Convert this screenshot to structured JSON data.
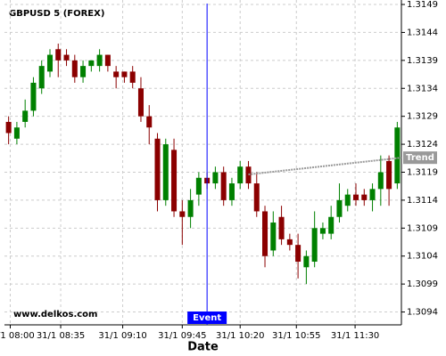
{
  "chart_data": {
    "type": "candlestick",
    "title": "GBPUSD 5 (FOREX)",
    "xlabel": "Date",
    "watermark": "www.delkos.com",
    "xlim": [
      -0.5,
      47.5
    ],
    "ylim": [
      1.30917,
      1.31498
    ],
    "xticks": [
      {
        "value": 0.2,
        "label": "31/1 08:00"
      },
      {
        "value": 6.3,
        "label": "31/1 08:35"
      },
      {
        "value": 13.8,
        "label": "31/1 09:10"
      },
      {
        "value": 21,
        "label": "31/1 09:45"
      },
      {
        "value": 28,
        "label": "31/1 10:20"
      },
      {
        "value": 34.8,
        "label": "31/1 10:55"
      },
      {
        "value": 41.9,
        "label": "31/1 11:30"
      }
    ],
    "yticks": [
      1.3094,
      1.3099,
      1.3104,
      1.3109,
      1.3114,
      1.3119,
      1.3124,
      1.3129,
      1.3134,
      1.3139,
      1.3144,
      1.3149
    ],
    "grid": true,
    "up_color": "#008000",
    "down_color": "#8b0000",
    "open": [
      1.3128,
      1.3125,
      1.3128,
      1.313,
      1.3134,
      1.3137,
      1.3141,
      1.314,
      1.3139,
      1.3136,
      1.3138,
      1.3138,
      1.314,
      1.3137,
      1.3137,
      1.3137,
      1.3134,
      1.3129,
      1.3125,
      1.3114,
      1.3123,
      1.3112,
      1.3111,
      1.3115,
      1.3118,
      1.3117,
      1.3119,
      1.3114,
      1.3117,
      1.312,
      1.3117,
      1.3112,
      1.3105,
      1.3111,
      1.3107,
      1.3106,
      1.3102,
      1.3103,
      1.3108,
      1.3108,
      1.3111,
      1.3113,
      1.3115,
      1.3115,
      1.3114,
      1.3116,
      1.3121,
      1.3117
    ],
    "high": [
      1.3129,
      1.3128,
      1.3132,
      1.3136,
      1.3139,
      1.3141,
      1.3142,
      1.3141,
      1.314,
      1.3139,
      1.3139,
      1.3141,
      1.314,
      1.3138,
      1.3137,
      1.3138,
      1.3136,
      1.3131,
      1.3126,
      1.3125,
      1.3125,
      1.3114,
      1.3116,
      1.3119,
      1.3119,
      1.312,
      1.312,
      1.3118,
      1.3121,
      1.3121,
      1.3119,
      1.3113,
      1.3112,
      1.3113,
      1.3108,
      1.3108,
      1.3105,
      1.3112,
      1.311,
      1.3113,
      1.3117,
      1.3116,
      1.3117,
      1.3116,
      1.3117,
      1.3122,
      1.3122,
      1.3128
    ],
    "low": [
      1.3124,
      1.3124,
      1.3127,
      1.3129,
      1.3133,
      1.3136,
      1.3136,
      1.3138,
      1.3135,
      1.3135,
      1.3137,
      1.3137,
      1.3137,
      1.3134,
      1.3135,
      1.3134,
      1.3128,
      1.3124,
      1.3112,
      1.3113,
      1.3111,
      1.3106,
      1.3109,
      1.3113,
      1.3116,
      1.3116,
      1.3113,
      1.3113,
      1.3116,
      1.3116,
      1.3111,
      1.3102,
      1.3104,
      1.3106,
      1.3105,
      1.31,
      1.3099,
      1.3102,
      1.3107,
      1.3107,
      1.311,
      1.3112,
      1.3113,
      1.3113,
      1.3112,
      1.3113,
      1.3113,
      1.3116
    ],
    "close": [
      1.3126,
      1.3127,
      1.313,
      1.3135,
      1.3138,
      1.314,
      1.3139,
      1.3139,
      1.3136,
      1.3138,
      1.3139,
      1.314,
      1.3138,
      1.3136,
      1.3136,
      1.3135,
      1.3129,
      1.3127,
      1.3114,
      1.3124,
      1.3112,
      1.3111,
      1.3114,
      1.3118,
      1.3117,
      1.3119,
      1.3114,
      1.3117,
      1.312,
      1.3117,
      1.3112,
      1.3104,
      1.311,
      1.3107,
      1.3106,
      1.3103,
      1.3104,
      1.3109,
      1.3109,
      1.3111,
      1.3114,
      1.3115,
      1.3114,
      1.3114,
      1.3116,
      1.3119,
      1.3116,
      1.3127
    ],
    "trend": {
      "name": "Trend",
      "color": "#999999",
      "x": [
        29,
        47.5
      ],
      "values": [
        1.31186,
        1.31216
      ]
    },
    "event": {
      "name": "Event",
      "color": "#0000ff",
      "x": 24
    }
  }
}
